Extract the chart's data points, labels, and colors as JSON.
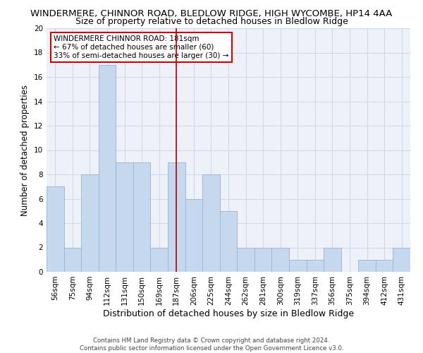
{
  "title": "WINDERMERE, CHINNOR ROAD, BLEDLOW RIDGE, HIGH WYCOMBE, HP14 4AA",
  "subtitle": "Size of property relative to detached houses in Bledlow Ridge",
  "xlabel": "Distribution of detached houses by size in Bledlow Ridge",
  "ylabel": "Number of detached properties",
  "footer_line1": "Contains HM Land Registry data © Crown copyright and database right 2024.",
  "footer_line2": "Contains public sector information licensed under the Open Government Licence v3.0.",
  "categories": [
    "56sqm",
    "75sqm",
    "94sqm",
    "112sqm",
    "131sqm",
    "150sqm",
    "169sqm",
    "187sqm",
    "206sqm",
    "225sqm",
    "244sqm",
    "262sqm",
    "281sqm",
    "300sqm",
    "319sqm",
    "337sqm",
    "356sqm",
    "375sqm",
    "394sqm",
    "412sqm",
    "431sqm"
  ],
  "values": [
    7,
    2,
    8,
    17,
    9,
    9,
    2,
    9,
    6,
    8,
    5,
    2,
    2,
    2,
    1,
    1,
    2,
    0,
    1,
    1,
    2
  ],
  "highlight_index": 7,
  "vline_color": "#aa0000",
  "bar_color": "#c5d8ee",
  "bar_edge_color": "#a0b8d8",
  "annotation_box_text": "WINDERMERE CHINNOR ROAD: 181sqm\n← 67% of detached houses are smaller (60)\n33% of semi-detached houses are larger (30) →",
  "ylim": [
    0,
    20
  ],
  "yticks": [
    0,
    2,
    4,
    6,
    8,
    10,
    12,
    14,
    16,
    18,
    20
  ],
  "grid_color": "#d0d8e8",
  "background_color": "#ffffff",
  "plot_bg_color": "#eef2f8",
  "title_fontsize": 9.5,
  "subtitle_fontsize": 9,
  "xlabel_fontsize": 9,
  "ylabel_fontsize": 8.5,
  "tick_fontsize": 7.5,
  "annotation_fontsize": 7.5
}
